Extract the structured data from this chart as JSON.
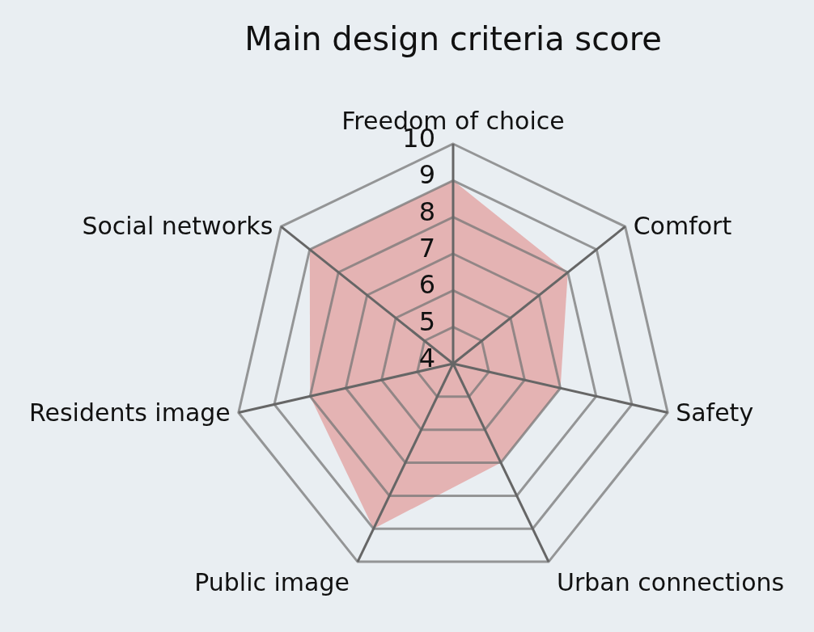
{
  "chart_data": {
    "type": "radar",
    "title": "Main design criteria score",
    "categories": [
      "Freedom of choice",
      "Comfort",
      "Safety",
      "Urban connections",
      "Public image",
      "Residents image",
      "Social networks"
    ],
    "series": [
      {
        "color": "#e4b3b3",
        "values": [
          9,
          8,
          7,
          7,
          9,
          8,
          9
        ]
      }
    ],
    "ylim": [
      4,
      10
    ],
    "yticks": [
      4,
      5,
      6,
      7,
      8,
      9,
      10
    ]
  }
}
